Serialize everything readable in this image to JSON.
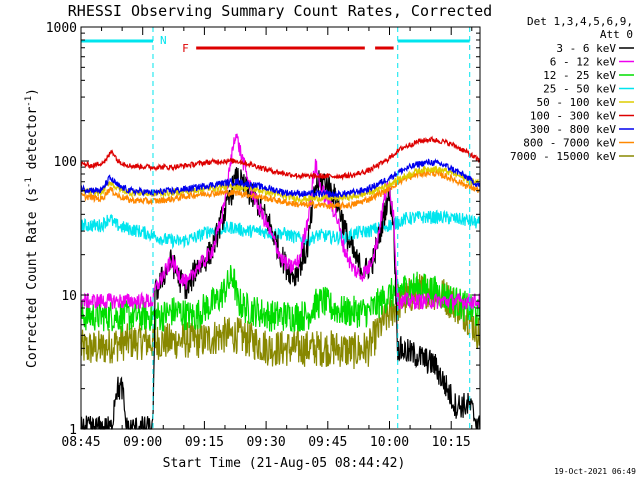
{
  "colors": {
    "background": "#ffffff",
    "axis": "#000000",
    "night": "#00e5ee",
    "flare": "#dd0000"
  },
  "chart_data": {
    "type": "line",
    "title": "RHESSI Observing Summary Count Rates, Corrected",
    "xlabel": "Start Time (21-Aug-05 08:44:42)",
    "ylabel": "Corrected Count Rate (s⁻¹ detector⁻¹)",
    "ylabel_main": "Corrected Count Rate (s",
    "ylabel_sup1": "-1",
    "ylabel_mid": " detector",
    "ylabel_sup2": "-1",
    "ylabel_end": ")",
    "yscale": "log",
    "ylim": [
      1,
      1000
    ],
    "xlim_minutes": [
      0,
      97
    ],
    "x_ticks": [
      {
        "label": "08:45",
        "minute": 0
      },
      {
        "label": "09:00",
        "minute": 15
      },
      {
        "label": "09:15",
        "minute": 30
      },
      {
        "label": "09:30",
        "minute": 45
      },
      {
        "label": "09:45",
        "minute": 60
      },
      {
        "label": "10:00",
        "minute": 75
      },
      {
        "label": "10:15",
        "minute": 90
      }
    ],
    "y_ticks": [
      {
        "label": "1",
        "value": 1
      },
      {
        "label": "10",
        "value": 10
      },
      {
        "label": "100",
        "value": 100
      },
      {
        "label": "1000",
        "value": 1000
      }
    ],
    "legend_header": [
      "Det 1,3,4,5,6,9,",
      "Att 0"
    ],
    "legend_position": "right",
    "annotations": {
      "night_label": "N",
      "flare_label": "F",
      "night_intervals": [
        [
          0,
          17.5
        ],
        [
          77,
          94.5
        ]
      ],
      "flare_intervals": [
        [
          28,
          69
        ],
        [
          71.5,
          76
        ]
      ],
      "dashed_lines_minutes": [
        17.5,
        77,
        94.5
      ]
    },
    "footer_date": "19-Oct-2021 06:49",
    "series": [
      {
        "name": "3 - 6 keV",
        "color": "#000000",
        "noise": 0.1,
        "points": [
          [
            0,
            1
          ],
          [
            7.5,
            1
          ],
          [
            8,
            1.5
          ],
          [
            8.5,
            2
          ],
          [
            10,
            2
          ],
          [
            10.5,
            1.5
          ],
          [
            11,
            1
          ],
          [
            17,
            1
          ],
          [
            17.5,
            1
          ],
          [
            18,
            10
          ],
          [
            20,
            14
          ],
          [
            22,
            18
          ],
          [
            24,
            13
          ],
          [
            26,
            11
          ],
          [
            28,
            16
          ],
          [
            30,
            18
          ],
          [
            32,
            22
          ],
          [
            34,
            35
          ],
          [
            36,
            50
          ],
          [
            37,
            65
          ],
          [
            38,
            75
          ],
          [
            40,
            62
          ],
          [
            43,
            48
          ],
          [
            46,
            33
          ],
          [
            48,
            22
          ],
          [
            50,
            16
          ],
          [
            52,
            14
          ],
          [
            55,
            22
          ],
          [
            57,
            65
          ],
          [
            59,
            72
          ],
          [
            61,
            60
          ],
          [
            63,
            42
          ],
          [
            65,
            25
          ],
          [
            67,
            18
          ],
          [
            69,
            15
          ],
          [
            71,
            18
          ],
          [
            73,
            32
          ],
          [
            74.5,
            52
          ],
          [
            75,
            55
          ],
          [
            76,
            35
          ],
          [
            77,
            4
          ],
          [
            82,
            3.5
          ],
          [
            86,
            3
          ],
          [
            89,
            2
          ],
          [
            91,
            1.5
          ],
          [
            94,
            1.5
          ],
          [
            94.5,
            1.5
          ],
          [
            97,
            1
          ]
        ]
      },
      {
        "name": "6 - 12 keV",
        "color": "#ee00ee",
        "noise": 0.06,
        "points": [
          [
            0,
            9
          ],
          [
            17.5,
            9
          ],
          [
            18,
            11
          ],
          [
            20,
            14
          ],
          [
            22,
            18
          ],
          [
            24,
            14
          ],
          [
            26,
            12
          ],
          [
            28,
            16
          ],
          [
            30,
            18
          ],
          [
            32,
            22
          ],
          [
            34,
            35
          ],
          [
            36,
            80
          ],
          [
            37.5,
            165
          ],
          [
            39,
            110
          ],
          [
            41,
            65
          ],
          [
            44,
            40
          ],
          [
            47,
            25
          ],
          [
            49,
            18
          ],
          [
            51,
            16
          ],
          [
            53,
            18
          ],
          [
            55,
            35
          ],
          [
            57,
            95
          ],
          [
            58.5,
            60
          ],
          [
            60,
            52
          ],
          [
            62,
            40
          ],
          [
            64,
            22
          ],
          [
            66,
            16
          ],
          [
            68,
            14
          ],
          [
            70,
            16
          ],
          [
            72,
            25
          ],
          [
            74,
            58
          ],
          [
            75,
            65
          ],
          [
            76,
            40
          ],
          [
            77,
            9
          ],
          [
            80,
            9
          ],
          [
            97,
            9
          ]
        ]
      },
      {
        "name": "12 - 25 keV",
        "color": "#00dd00",
        "noise": 0.12,
        "points": [
          [
            0,
            7
          ],
          [
            17.5,
            7
          ],
          [
            20,
            7
          ],
          [
            22,
            7.5
          ],
          [
            24,
            7.5
          ],
          [
            26,
            7
          ],
          [
            28,
            7
          ],
          [
            30,
            8
          ],
          [
            33,
            9
          ],
          [
            35,
            11
          ],
          [
            37,
            14
          ],
          [
            38,
            9
          ],
          [
            40,
            8
          ],
          [
            43,
            7.5
          ],
          [
            46,
            7
          ],
          [
            49,
            7
          ],
          [
            52,
            7
          ],
          [
            55,
            7
          ],
          [
            57,
            8.5
          ],
          [
            59,
            9
          ],
          [
            61,
            8
          ],
          [
            64,
            7.5
          ],
          [
            67,
            7.5
          ],
          [
            70,
            7.5
          ],
          [
            73,
            9
          ],
          [
            75,
            10
          ],
          [
            77,
            11
          ],
          [
            81,
            11.5
          ],
          [
            85,
            11
          ],
          [
            88,
            10
          ],
          [
            91,
            9
          ],
          [
            94,
            8
          ],
          [
            97,
            7
          ]
        ]
      },
      {
        "name": "25 - 50 keV",
        "color": "#00e5ee",
        "noise": 0.05,
        "points": [
          [
            0,
            33
          ],
          [
            5,
            33
          ],
          [
            7,
            38
          ],
          [
            8,
            34
          ],
          [
            10,
            32
          ],
          [
            14,
            30
          ],
          [
            17.5,
            28
          ],
          [
            20,
            26
          ],
          [
            24,
            25
          ],
          [
            28,
            27
          ],
          [
            31,
            30
          ],
          [
            34,
            31
          ],
          [
            37,
            32
          ],
          [
            40,
            30
          ],
          [
            43,
            30
          ],
          [
            46,
            29
          ],
          [
            49,
            29
          ],
          [
            52,
            27
          ],
          [
            55,
            26
          ],
          [
            58,
            28
          ],
          [
            61,
            27
          ],
          [
            64,
            27
          ],
          [
            67,
            29
          ],
          [
            70,
            30
          ],
          [
            73,
            32
          ],
          [
            76,
            34
          ],
          [
            79,
            37
          ],
          [
            82,
            38
          ],
          [
            85,
            38
          ],
          [
            88,
            38
          ],
          [
            91,
            37
          ],
          [
            94,
            36
          ],
          [
            97,
            34
          ]
        ]
      },
      {
        "name": "50 - 100 keV",
        "color": "#ddcc00",
        "noise": 0.025,
        "points": [
          [
            0,
            60
          ],
          [
            5,
            58
          ],
          [
            7,
            70
          ],
          [
            9,
            62
          ],
          [
            12,
            58
          ],
          [
            17.5,
            57
          ],
          [
            22,
            58
          ],
          [
            26,
            60
          ],
          [
            30,
            62
          ],
          [
            34,
            64
          ],
          [
            38,
            64
          ],
          [
            42,
            62
          ],
          [
            46,
            58
          ],
          [
            50,
            54
          ],
          [
            54,
            52
          ],
          [
            58,
            53
          ],
          [
            62,
            53
          ],
          [
            66,
            54
          ],
          [
            70,
            58
          ],
          [
            74,
            65
          ],
          [
            78,
            75
          ],
          [
            82,
            85
          ],
          [
            85,
            88
          ],
          [
            88,
            85
          ],
          [
            91,
            80
          ],
          [
            94,
            72
          ],
          [
            97,
            68
          ]
        ]
      },
      {
        "name": "100 - 300 keV",
        "color": "#dd0000",
        "noise": 0.02,
        "points": [
          [
            0,
            95
          ],
          [
            3,
            92
          ],
          [
            6,
            100
          ],
          [
            7.5,
            120
          ],
          [
            9,
            100
          ],
          [
            12,
            92
          ],
          [
            17.5,
            90
          ],
          [
            22,
            90
          ],
          [
            26,
            93
          ],
          [
            30,
            97
          ],
          [
            34,
            100
          ],
          [
            38,
            100
          ],
          [
            42,
            93
          ],
          [
            46,
            85
          ],
          [
            50,
            80
          ],
          [
            54,
            77
          ],
          [
            58,
            77
          ],
          [
            62,
            77
          ],
          [
            66,
            78
          ],
          [
            70,
            85
          ],
          [
            74,
            100
          ],
          [
            78,
            125
          ],
          [
            82,
            140
          ],
          [
            85,
            145
          ],
          [
            88,
            140
          ],
          [
            91,
            130
          ],
          [
            94,
            115
          ],
          [
            97,
            100
          ]
        ]
      },
      {
        "name": "300 - 800 keV",
        "color": "#0000ee",
        "noise": 0.025,
        "points": [
          [
            0,
            62
          ],
          [
            5,
            60
          ],
          [
            7,
            75
          ],
          [
            9,
            65
          ],
          [
            12,
            60
          ],
          [
            17.5,
            58
          ],
          [
            22,
            60
          ],
          [
            26,
            62
          ],
          [
            30,
            65
          ],
          [
            34,
            68
          ],
          [
            38,
            70
          ],
          [
            42,
            66
          ],
          [
            46,
            62
          ],
          [
            50,
            58
          ],
          [
            54,
            57
          ],
          [
            58,
            57
          ],
          [
            62,
            56
          ],
          [
            66,
            58
          ],
          [
            70,
            62
          ],
          [
            74,
            72
          ],
          [
            78,
            85
          ],
          [
            82,
            95
          ],
          [
            85,
            98
          ],
          [
            88,
            94
          ],
          [
            91,
            85
          ],
          [
            94,
            75
          ],
          [
            97,
            65
          ]
        ]
      },
      {
        "name": "800 - 7000 keV",
        "color": "#ff8800",
        "noise": 0.025,
        "points": [
          [
            0,
            55
          ],
          [
            5,
            52
          ],
          [
            7,
            62
          ],
          [
            9,
            55
          ],
          [
            12,
            51
          ],
          [
            17.5,
            50
          ],
          [
            22,
            52
          ],
          [
            26,
            55
          ],
          [
            30,
            57
          ],
          [
            34,
            58
          ],
          [
            38,
            58
          ],
          [
            42,
            55
          ],
          [
            46,
            52
          ],
          [
            50,
            49
          ],
          [
            54,
            47
          ],
          [
            58,
            47
          ],
          [
            62,
            46
          ],
          [
            66,
            47
          ],
          [
            70,
            52
          ],
          [
            74,
            60
          ],
          [
            78,
            72
          ],
          [
            82,
            80
          ],
          [
            85,
            82
          ],
          [
            88,
            78
          ],
          [
            91,
            72
          ],
          [
            94,
            65
          ],
          [
            97,
            60
          ]
        ]
      },
      {
        "name": "7000 - 15000 keV",
        "color": "#888800",
        "noise": 0.14,
        "points": [
          [
            0,
            4
          ],
          [
            5,
            4
          ],
          [
            8,
            4.3
          ],
          [
            12,
            4.5
          ],
          [
            17.5,
            4.5
          ],
          [
            22,
            4.5
          ],
          [
            26,
            4.6
          ],
          [
            30,
            4.6
          ],
          [
            34,
            5
          ],
          [
            38,
            5
          ],
          [
            42,
            4.5
          ],
          [
            46,
            4
          ],
          [
            50,
            4
          ],
          [
            54,
            4
          ],
          [
            58,
            4
          ],
          [
            62,
            4
          ],
          [
            66,
            3.8
          ],
          [
            70,
            4
          ],
          [
            73,
            6
          ],
          [
            76,
            8
          ],
          [
            80,
            10
          ],
          [
            84,
            11
          ],
          [
            88,
            10
          ],
          [
            91,
            8.5
          ],
          [
            94,
            7
          ],
          [
            97,
            5
          ]
        ]
      }
    ]
  }
}
